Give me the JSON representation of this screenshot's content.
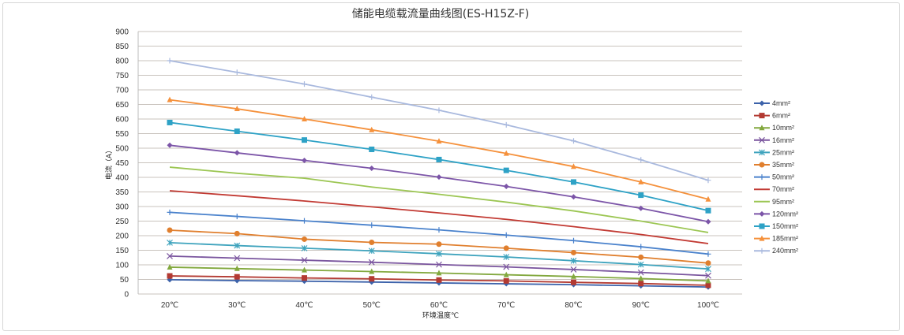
{
  "chart_data": {
    "type": "line",
    "title": "储能电缆载流量曲线图(ES-H15Z-F)",
    "xlabel": "环境温度℃",
    "ylabel": "电流（A）",
    "categories": [
      "20℃",
      "30℃",
      "40℃",
      "50℃",
      "60℃",
      "70℃",
      "80℃",
      "90℃",
      "100℃"
    ],
    "ylim": [
      0,
      900
    ],
    "yticks": [
      0,
      50,
      100,
      150,
      200,
      250,
      300,
      350,
      400,
      450,
      500,
      550,
      600,
      650,
      700,
      750,
      800,
      850,
      900
    ],
    "grid": true,
    "legend_position": "right",
    "series": [
      {
        "name": "4mm²",
        "color": "#3c62aa",
        "marker": "diamond",
        "values": [
          49,
          46,
          44,
          41,
          38,
          35,
          32,
          28,
          24
        ]
      },
      {
        "name": "6mm²",
        "color": "#b33a32",
        "marker": "square",
        "values": [
          62,
          59,
          55,
          52,
          48,
          45,
          40,
          36,
          30
        ]
      },
      {
        "name": "10mm²",
        "color": "#82a83e",
        "marker": "triangle",
        "values": [
          92,
          87,
          82,
          77,
          72,
          66,
          60,
          53,
          45
        ]
      },
      {
        "name": "16mm²",
        "color": "#7a559e",
        "marker": "x",
        "values": [
          130,
          123,
          116,
          109,
          101,
          93,
          84,
          74,
          63
        ]
      },
      {
        "name": "25mm²",
        "color": "#3ea3bd",
        "marker": "star",
        "values": [
          176,
          166,
          157,
          148,
          138,
          127,
          114,
          101,
          86
        ]
      },
      {
        "name": "35mm²",
        "color": "#e07f2e",
        "marker": "circle",
        "values": [
          219,
          207,
          188,
          177,
          171,
          157,
          142,
          126,
          106
        ]
      },
      {
        "name": "50mm²",
        "color": "#4a82cc",
        "marker": "plus",
        "values": [
          280,
          266,
          251,
          236,
          220,
          202,
          183,
          162,
          137
        ]
      },
      {
        "name": "70mm²",
        "color": "#c23a33",
        "marker": "none",
        "values": [
          354,
          337,
          319,
          299,
          278,
          256,
          231,
          204,
          173
        ]
      },
      {
        "name": "95mm²",
        "color": "#9cc653",
        "marker": "none",
        "values": [
          435,
          414,
          397,
          367,
          342,
          315,
          285,
          250,
          211
        ]
      },
      {
        "name": "120mm²",
        "color": "#7c55a8",
        "marker": "diamond",
        "values": [
          510,
          484,
          458,
          431,
          401,
          369,
          333,
          294,
          248
        ]
      },
      {
        "name": "150mm²",
        "color": "#2ea2c6",
        "marker": "square",
        "values": [
          588,
          558,
          528,
          496,
          461,
          424,
          384,
          339,
          286
        ]
      },
      {
        "name": "185mm²",
        "color": "#f5913c",
        "marker": "triangle",
        "values": [
          666,
          635,
          600,
          563,
          524,
          482,
          437,
          384,
          325
        ]
      },
      {
        "name": "240mm²",
        "color": "#a9b9de",
        "marker": "plus",
        "values": [
          800,
          760,
          720,
          675,
          630,
          580,
          525,
          460,
          390
        ]
      }
    ]
  }
}
